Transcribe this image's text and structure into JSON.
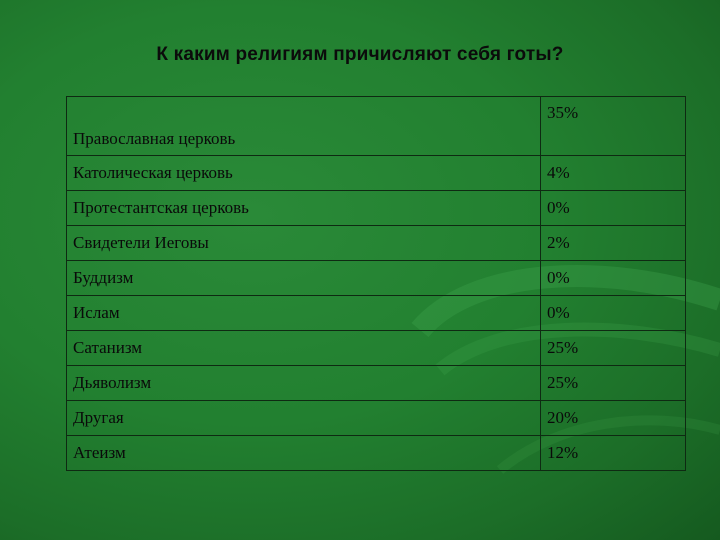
{
  "slide": {
    "title": "К каким религиям причисляют себя готы?"
  },
  "table": {
    "rows": [
      {
        "label": "Православная церковь",
        "value": "35%"
      },
      {
        "label": "Католическая церковь",
        "value": "4%"
      },
      {
        "label": "Протестантская церковь",
        "value": "0%"
      },
      {
        "label": "Свидетели Иеговы",
        "value": "2%"
      },
      {
        "label": "Буддизм",
        "value": "0%"
      },
      {
        "label": "Ислам",
        "value": "0%"
      },
      {
        "label": "Сатанизм",
        "value": "25%"
      },
      {
        "label": "Дьяволизм",
        "value": "25%"
      },
      {
        "label": "Другая",
        "value": "20%"
      },
      {
        "label": "Атеизм",
        "value": "12%"
      }
    ]
  },
  "colors": {
    "background": "#228030",
    "text": "#0a0a0a",
    "border": "#0e2a12"
  }
}
